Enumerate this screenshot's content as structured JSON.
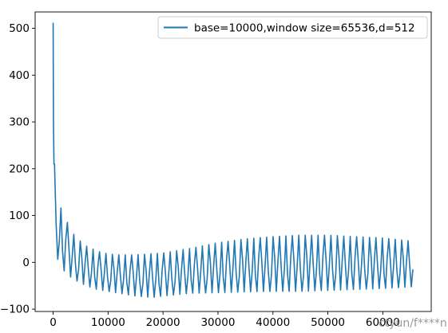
{
  "chart_data": {
    "type": "line",
    "title": "",
    "xlabel": "",
    "ylabel": "",
    "xlim": [
      -3277,
      68813
    ],
    "ylim": [
      -105,
      535
    ],
    "xticks": [
      0,
      10000,
      20000,
      30000,
      40000,
      50000,
      60000
    ],
    "xtick_labels": [
      "0",
      "10000",
      "20000",
      "30000",
      "40000",
      "50000",
      "60000"
    ],
    "yticks": [
      -100,
      0,
      100,
      200,
      300,
      400,
      500
    ],
    "ytick_labels": [
      "−100",
      "0",
      "100",
      "200",
      "300",
      "400",
      "500"
    ],
    "grid": false,
    "legend_position": "upper right",
    "series": [
      {
        "name": "base=10000,window size=65536,d=512",
        "color": "#1f77b4",
        "x_range": [
          0,
          65536
        ],
        "peak": 512,
        "upper_envelope": [
          [
            0,
            512
          ],
          [
            150,
            230
          ],
          [
            500,
            160
          ],
          [
            1000,
            128
          ],
          [
            2000,
            100
          ],
          [
            3000,
            75
          ],
          [
            4000,
            55
          ],
          [
            6000,
            35
          ],
          [
            8000,
            24
          ],
          [
            10000,
            18
          ],
          [
            12000,
            16
          ],
          [
            15000,
            16
          ],
          [
            20000,
            20
          ],
          [
            25000,
            30
          ],
          [
            30000,
            42
          ],
          [
            35000,
            50
          ],
          [
            40000,
            55
          ],
          [
            45000,
            58
          ],
          [
            50000,
            58
          ],
          [
            55000,
            55
          ],
          [
            60000,
            52
          ],
          [
            65536,
            45
          ]
        ],
        "lower_envelope": [
          [
            0,
            0
          ],
          [
            500,
            20
          ],
          [
            1000,
            0
          ],
          [
            2000,
            -18
          ],
          [
            3000,
            -30
          ],
          [
            4000,
            -38
          ],
          [
            6000,
            -50
          ],
          [
            8000,
            -58
          ],
          [
            10000,
            -62
          ],
          [
            12000,
            -66
          ],
          [
            15000,
            -72
          ],
          [
            18000,
            -75
          ],
          [
            20000,
            -72
          ],
          [
            25000,
            -66
          ],
          [
            30000,
            -65
          ],
          [
            35000,
            -63
          ],
          [
            40000,
            -62
          ],
          [
            45000,
            -62
          ],
          [
            50000,
            -60
          ],
          [
            55000,
            -58
          ],
          [
            60000,
            -56
          ],
          [
            65536,
            -52
          ]
        ],
        "oscillation_period": 1170
      }
    ]
  },
  "watermark": "ctyun/f****n"
}
